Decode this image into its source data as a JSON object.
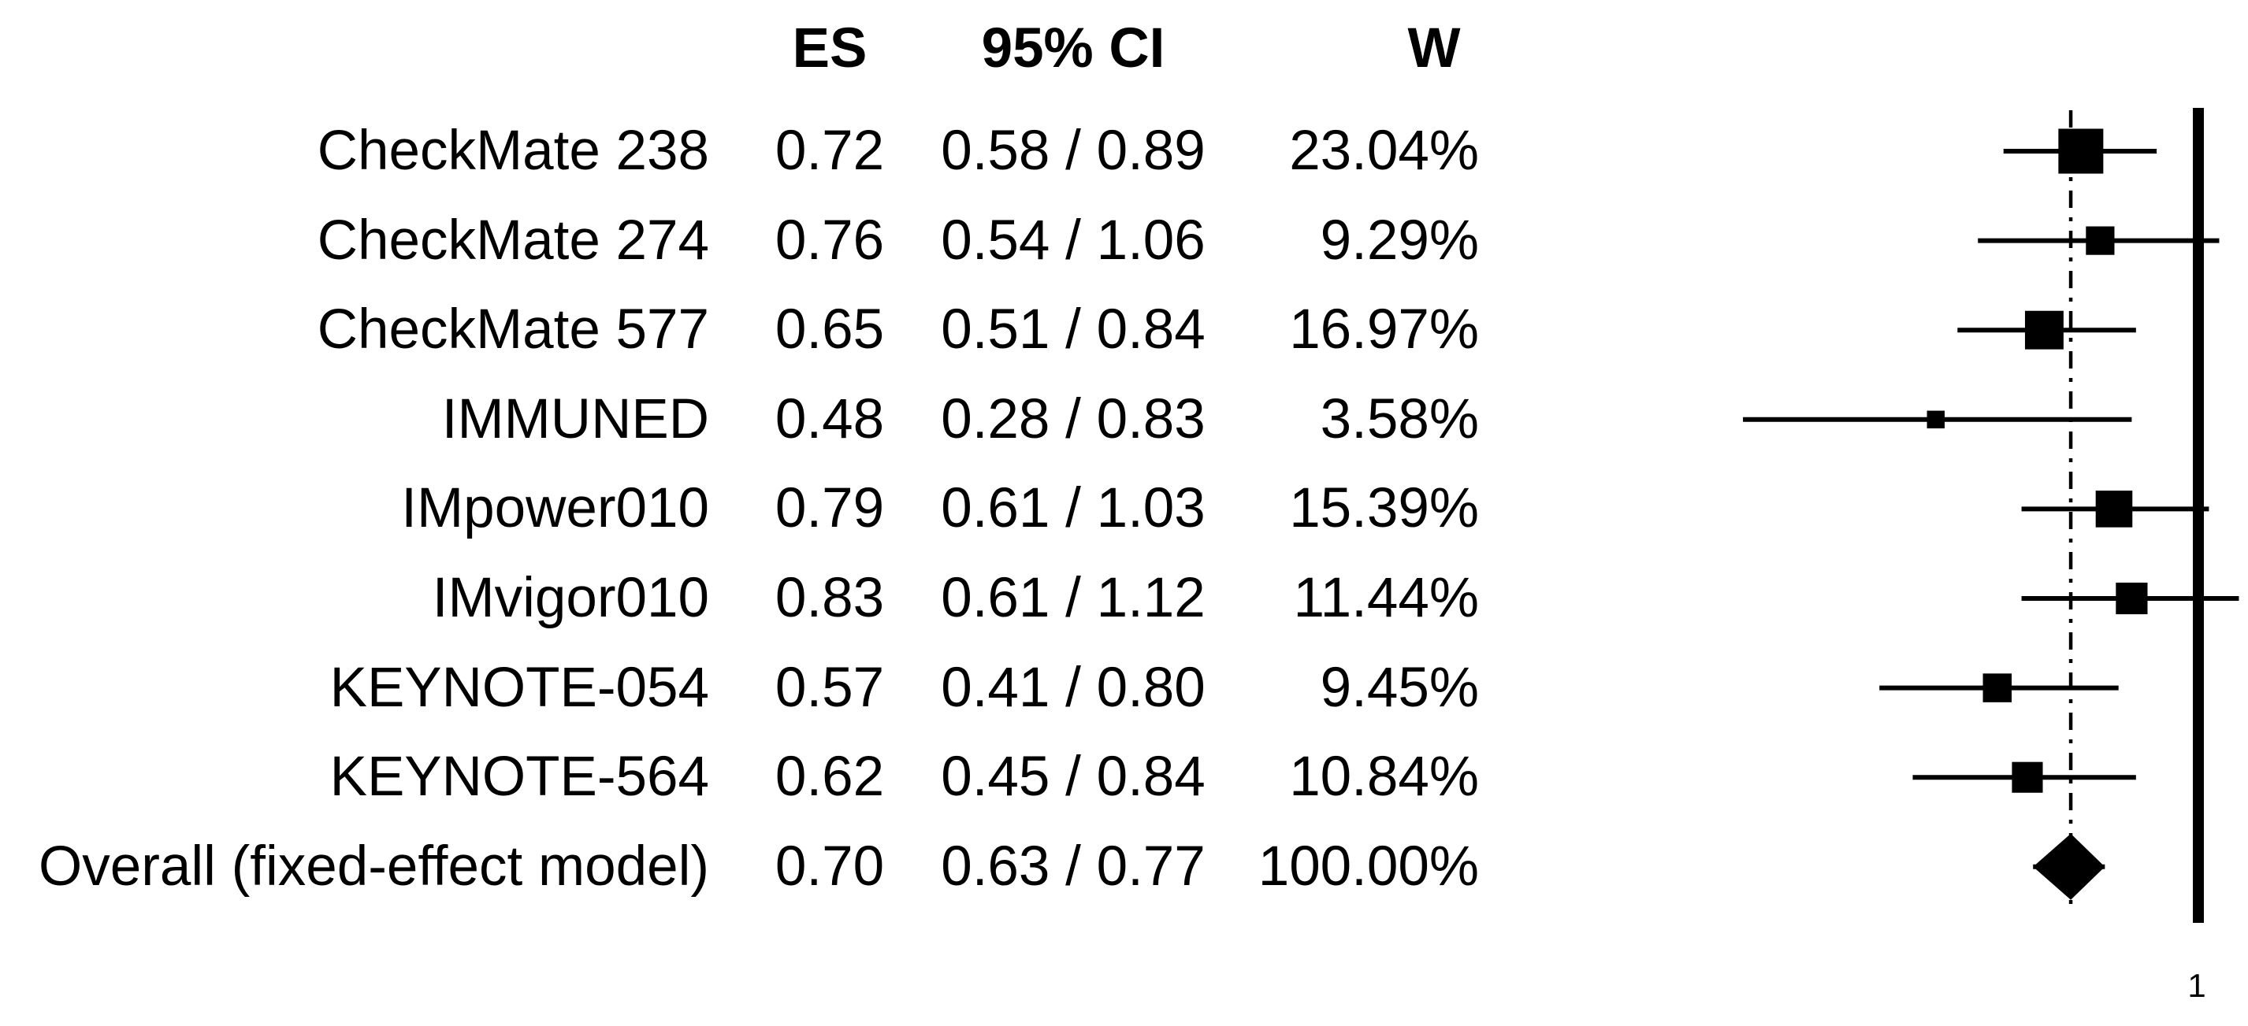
{
  "figure": {
    "kind": "forest-plot",
    "background_color": "#ffffff",
    "ink_color": "#000000"
  },
  "table": {
    "columns": {
      "es": "ES",
      "ci": "95% CI",
      "w": "W"
    }
  },
  "chart_data": {
    "type": "forest",
    "scale": "log",
    "grid": false,
    "studies": [
      {
        "label": "CheckMate 238",
        "es": 0.72,
        "ci_low": 0.58,
        "ci_high": 0.89,
        "weight_pct": 23.04,
        "es_text": "0.72",
        "ci_text": "0.58 / 0.89",
        "w_text": "23.04%"
      },
      {
        "label": "CheckMate 274",
        "es": 0.76,
        "ci_low": 0.54,
        "ci_high": 1.06,
        "weight_pct": 9.29,
        "es_text": "0.76",
        "ci_text": "0.54 / 1.06",
        "w_text": "9.29%"
      },
      {
        "label": "CheckMate 577",
        "es": 0.65,
        "ci_low": 0.51,
        "ci_high": 0.84,
        "weight_pct": 16.97,
        "es_text": "0.65",
        "ci_text": "0.51 / 0.84",
        "w_text": "16.97%"
      },
      {
        "label": "IMMUNED",
        "es": 0.48,
        "ci_low": 0.28,
        "ci_high": 0.83,
        "weight_pct": 3.58,
        "es_text": "0.48",
        "ci_text": "0.28 / 0.83",
        "w_text": "3.58%"
      },
      {
        "label": "IMpower010",
        "es": 0.79,
        "ci_low": 0.61,
        "ci_high": 1.03,
        "weight_pct": 15.39,
        "es_text": "0.79",
        "ci_text": "0.61 / 1.03",
        "w_text": "15.39%"
      },
      {
        "label": "IMvigor010",
        "es": 0.83,
        "ci_low": 0.61,
        "ci_high": 1.12,
        "weight_pct": 11.44,
        "es_text": "0.83",
        "ci_text": "0.61 / 1.12",
        "w_text": "11.44%"
      },
      {
        "label": "KEYNOTE-054",
        "es": 0.57,
        "ci_low": 0.41,
        "ci_high": 0.8,
        "weight_pct": 9.45,
        "es_text": "0.57",
        "ci_text": "0.41 / 0.80",
        "w_text": "9.45%"
      },
      {
        "label": "KEYNOTE-564",
        "es": 0.62,
        "ci_low": 0.45,
        "ci_high": 0.84,
        "weight_pct": 10.84,
        "es_text": "0.62",
        "ci_text": "0.45 / 0.84",
        "w_text": "10.84%"
      }
    ],
    "overall": {
      "label": "Overall (fixed-effect model)",
      "es": 0.7,
      "ci_low": 0.63,
      "ci_high": 0.77,
      "weight_pct": 100.0,
      "es_text": "0.70",
      "ci_text": "0.63 / 0.77",
      "w_text": "100.00%"
    },
    "reference_line": {
      "value": 1,
      "label": "1"
    },
    "overall_line_value": 0.7,
    "xlabel": "",
    "ylabel": "",
    "legend": null
  }
}
